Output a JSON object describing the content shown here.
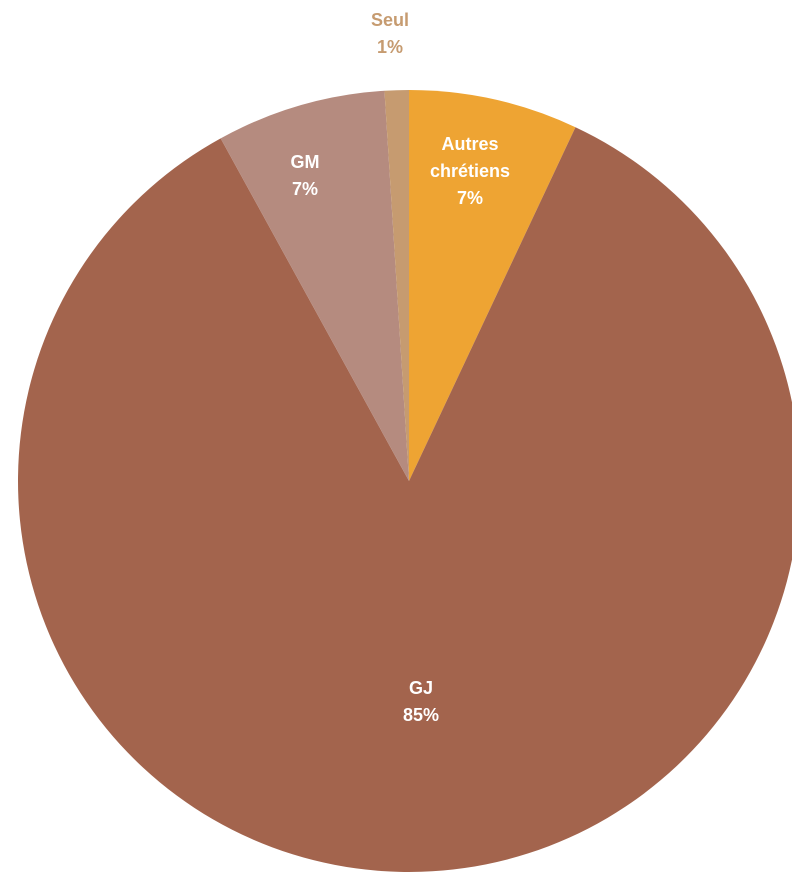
{
  "chart_data": {
    "type": "pie",
    "title": "",
    "start_angle_deg": 0,
    "direction": "clockwise",
    "slices": [
      {
        "name": "Autres chrétiens",
        "label_lines": [
          "Autres",
          "chrétiens"
        ],
        "value": 7,
        "value_label": "7%",
        "color": "#eea433",
        "label_color": "#ffffff"
      },
      {
        "name": "GJ",
        "label_lines": [
          "GJ"
        ],
        "value": 85,
        "value_label": "85%",
        "color": "#a3644d",
        "label_color": "#ffffff"
      },
      {
        "name": "GM",
        "label_lines": [
          "GM"
        ],
        "value": 7,
        "value_label": "7%",
        "color": "#b58b7f",
        "label_color": "#ffffff"
      },
      {
        "name": "Seul",
        "label_lines": [
          "Seul"
        ],
        "value": 1,
        "value_label": "1%",
        "color": "#c69b70",
        "label_color": "#c69b70"
      }
    ]
  }
}
